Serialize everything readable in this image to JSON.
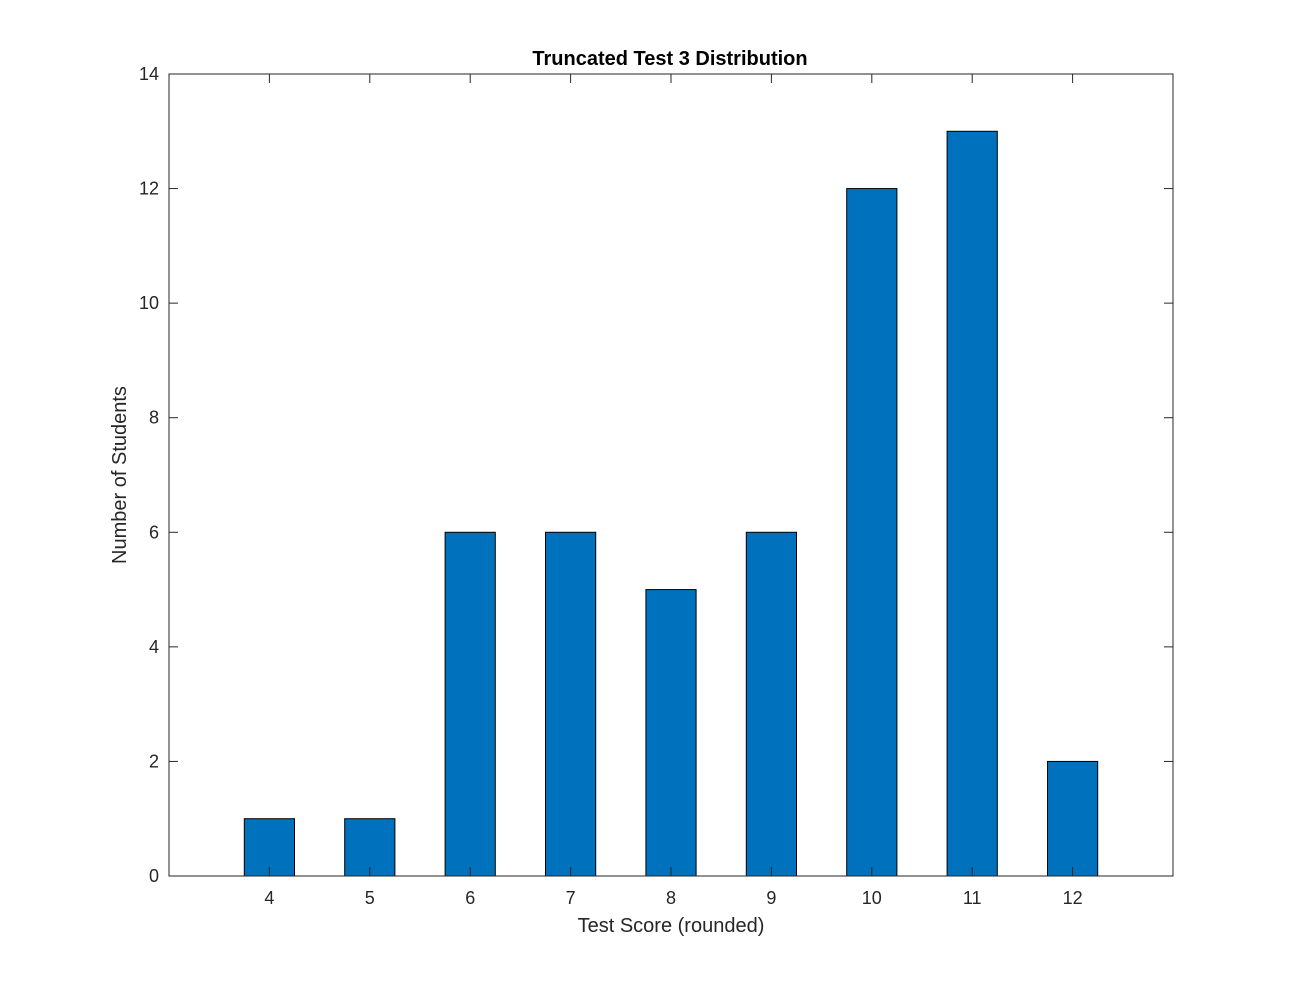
{
  "chart_data": {
    "type": "bar",
    "title": "Truncated Test 3 Distribution",
    "xlabel": "Test Score (rounded)",
    "ylabel": "Number of Students",
    "categories": [
      4,
      5,
      6,
      7,
      8,
      9,
      10,
      11,
      12
    ],
    "values": [
      1,
      1,
      6,
      6,
      5,
      6,
      12,
      13,
      2
    ],
    "xlim": [
      3,
      13
    ],
    "ylim": [
      0,
      14
    ],
    "yticks": [
      0,
      2,
      4,
      6,
      8,
      10,
      12,
      14
    ],
    "xticks": [
      4,
      5,
      6,
      7,
      8,
      9,
      10,
      11,
      12
    ],
    "bar_width": 0.5,
    "grid": false,
    "legend": "none",
    "colors": {
      "bar": "#0072BD",
      "bar_edge": "#000000",
      "axes": "#262626"
    }
  }
}
